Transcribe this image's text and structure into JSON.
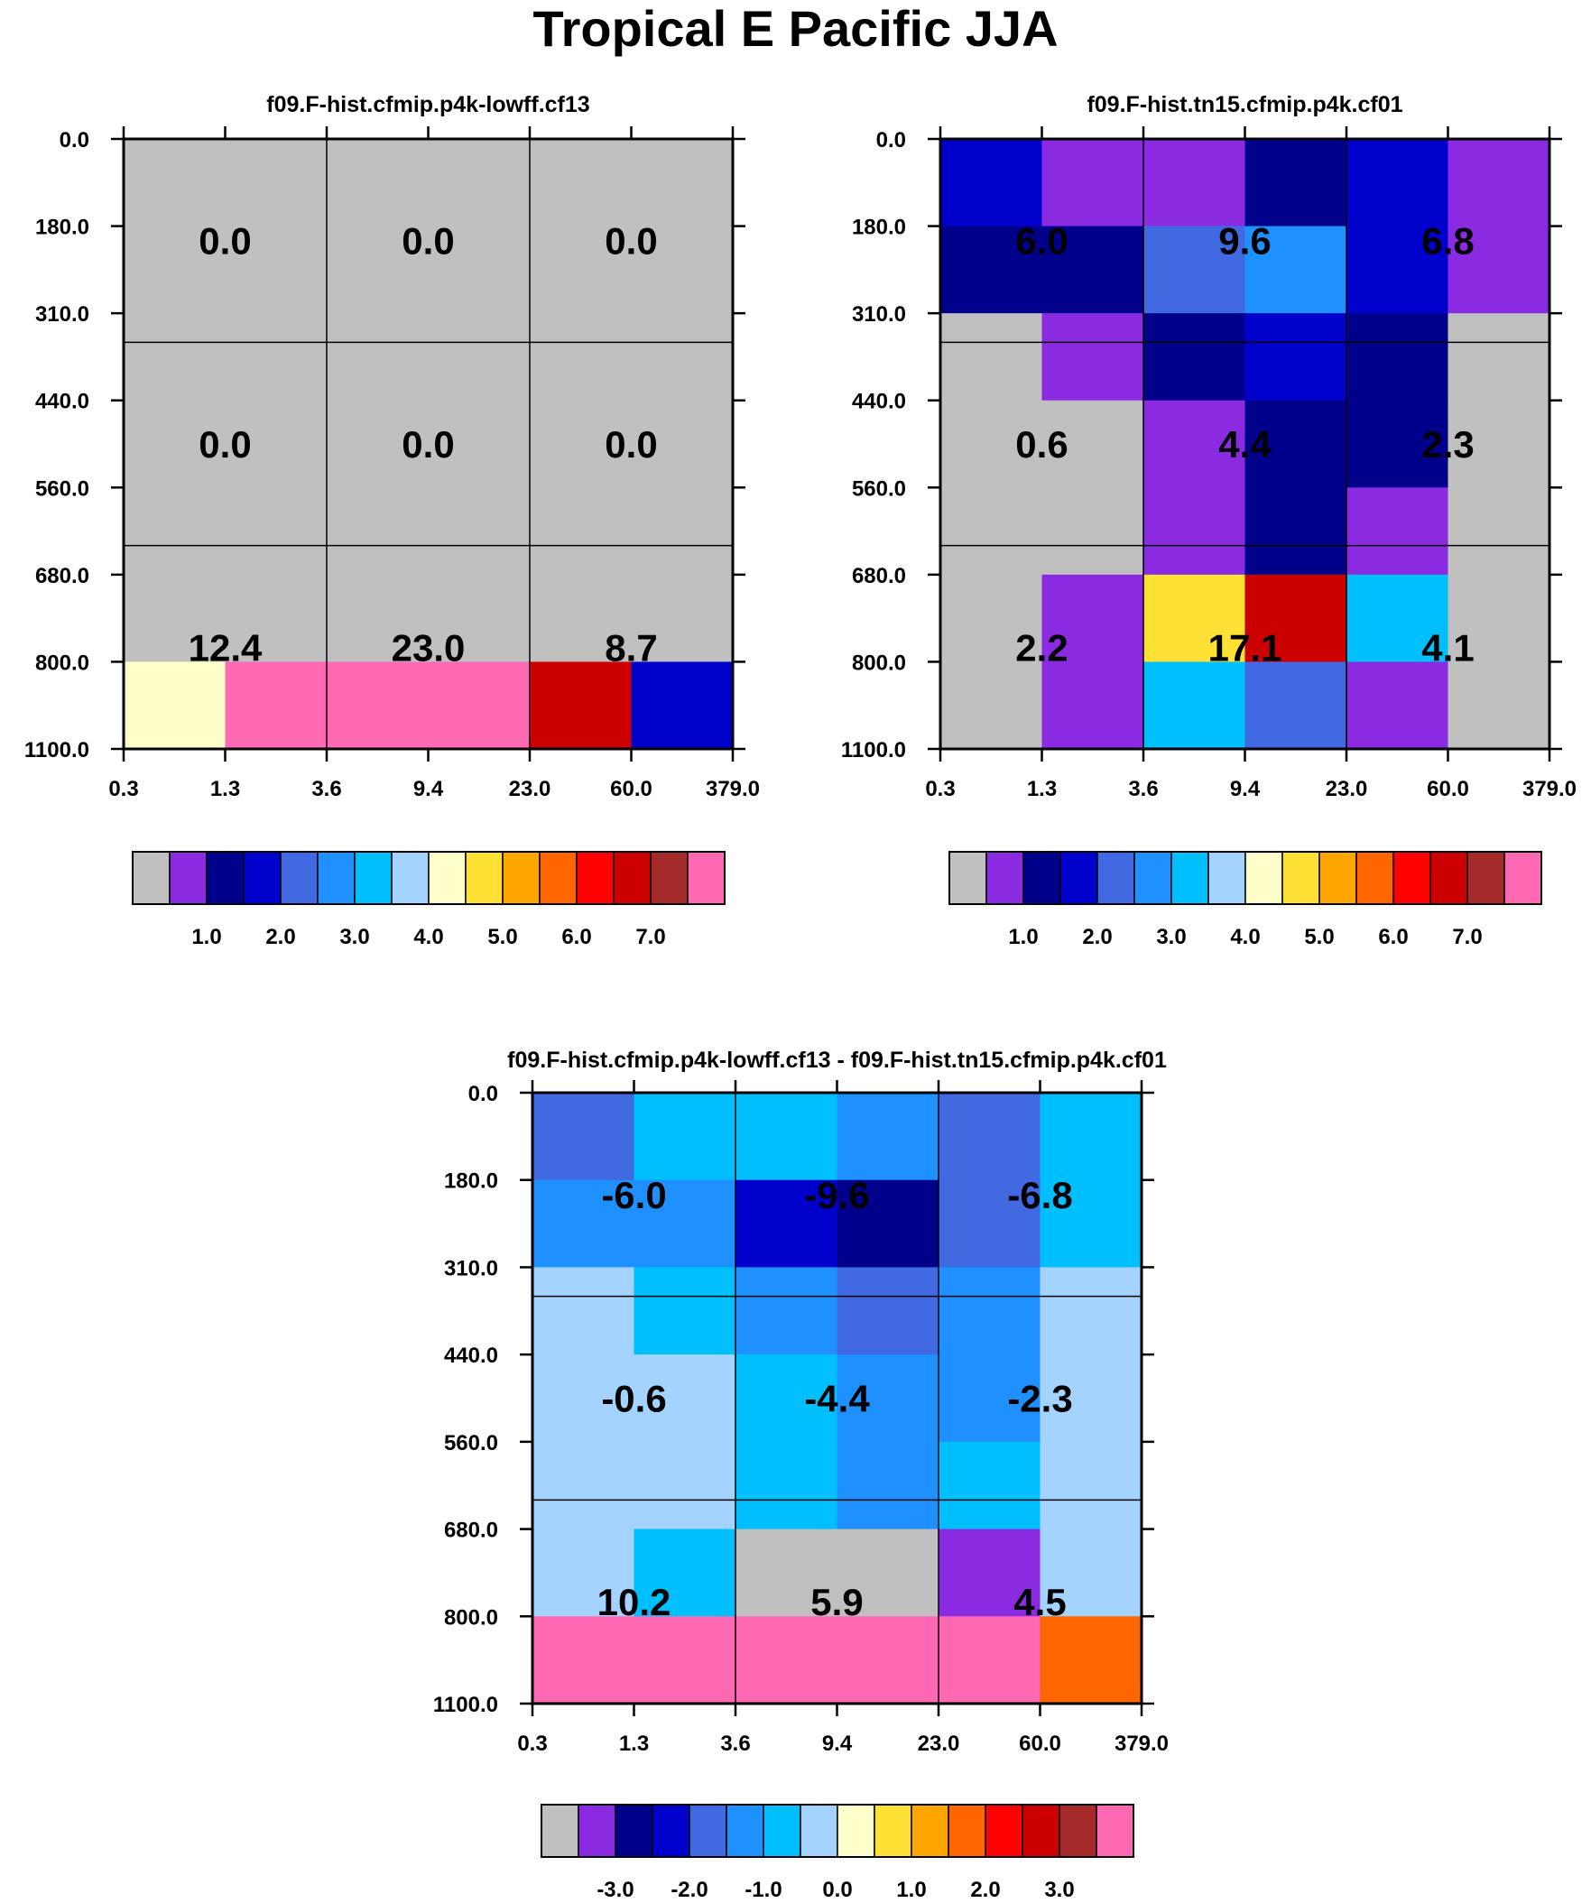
{
  "title": "Tropical E Pacific JJA",
  "y_tick_labels": [
    "0.0",
    "180.0",
    "310.0",
    "440.0",
    "560.0",
    "680.0",
    "800.0",
    "1100.0"
  ],
  "x_tick_labels": [
    "0.3",
    "1.3",
    "3.6",
    "9.4",
    "23.0",
    "60.0",
    "379.0"
  ],
  "colorbar_colors": [
    "#c0c0c0",
    "#8a2be2",
    "#00008b",
    "#0000cd",
    "#4169e1",
    "#1e90ff",
    "#00bfff",
    "#a4d3ff",
    "#ffffcc",
    "#ffe135",
    "#ffa500",
    "#ff6600",
    "#ff0000",
    "#cc0000",
    "#a52a2a",
    "#ff69b4"
  ],
  "chart_data": [
    {
      "type": "heatmap",
      "title": "f09.F-hist.cfmip.p4k-lowff.cf13",
      "cells": [
        [
          "#c0c0c0",
          "#c0c0c0",
          "#c0c0c0",
          "#c0c0c0",
          "#c0c0c0",
          "#c0c0c0"
        ],
        [
          "#c0c0c0",
          "#c0c0c0",
          "#c0c0c0",
          "#c0c0c0",
          "#c0c0c0",
          "#c0c0c0"
        ],
        [
          "#c0c0c0",
          "#c0c0c0",
          "#c0c0c0",
          "#c0c0c0",
          "#c0c0c0",
          "#c0c0c0"
        ],
        [
          "#c0c0c0",
          "#c0c0c0",
          "#c0c0c0",
          "#c0c0c0",
          "#c0c0c0",
          "#c0c0c0"
        ],
        [
          "#c0c0c0",
          "#c0c0c0",
          "#c0c0c0",
          "#c0c0c0",
          "#c0c0c0",
          "#c0c0c0"
        ],
        [
          "#c0c0c0",
          "#c0c0c0",
          "#c0c0c0",
          "#c0c0c0",
          "#c0c0c0",
          "#c0c0c0"
        ],
        [
          "#ffffcc",
          "#ff69b4",
          "#ff69b4",
          "#ff69b4",
          "#cc0000",
          "#0000cd"
        ]
      ],
      "values": [
        [
          "0.0",
          "0.0",
          "0.0"
        ],
        [
          "0.0",
          "0.0",
          "0.0"
        ],
        [
          "12.4",
          "23.0",
          "8.7"
        ]
      ],
      "colorbar_labels": [
        "1.0",
        "2.0",
        "3.0",
        "4.0",
        "5.0",
        "6.0",
        "7.0"
      ]
    },
    {
      "type": "heatmap",
      "title": "f09.F-hist.tn15.cfmip.p4k.cf01",
      "cells": [
        [
          "#0000cd",
          "#8a2be2",
          "#8a2be2",
          "#00008b",
          "#0000cd",
          "#8a2be2"
        ],
        [
          "#00008b",
          "#00008b",
          "#4169e1",
          "#1e90ff",
          "#0000cd",
          "#8a2be2"
        ],
        [
          "#c0c0c0",
          "#8a2be2",
          "#00008b",
          "#0000cd",
          "#00008b",
          "#c0c0c0"
        ],
        [
          "#c0c0c0",
          "#c0c0c0",
          "#8a2be2",
          "#00008b",
          "#00008b",
          "#c0c0c0"
        ],
        [
          "#c0c0c0",
          "#c0c0c0",
          "#8a2be2",
          "#00008b",
          "#8a2be2",
          "#c0c0c0"
        ],
        [
          "#c0c0c0",
          "#8a2be2",
          "#ffe135",
          "#cc0000",
          "#00bfff",
          "#c0c0c0"
        ],
        [
          "#c0c0c0",
          "#8a2be2",
          "#00bfff",
          "#4169e1",
          "#8a2be2",
          "#c0c0c0"
        ]
      ],
      "values": [
        [
          "6.0",
          "9.6",
          "6.8"
        ],
        [
          "0.6",
          "4.4",
          "2.3"
        ],
        [
          "2.2",
          "17.1",
          "4.1"
        ]
      ],
      "colorbar_labels": [
        "1.0",
        "2.0",
        "3.0",
        "4.0",
        "5.0",
        "6.0",
        "7.0"
      ]
    },
    {
      "type": "heatmap",
      "title": "f09.F-hist.cfmip.p4k-lowff.cf13 - f09.F-hist.tn15.cfmip.p4k.cf01",
      "cells": [
        [
          "#4169e1",
          "#00bfff",
          "#00bfff",
          "#1e90ff",
          "#4169e1",
          "#00bfff"
        ],
        [
          "#1e90ff",
          "#1e90ff",
          "#0000cd",
          "#00008b",
          "#4169e1",
          "#00bfff"
        ],
        [
          "#a4d3ff",
          "#00bfff",
          "#1e90ff",
          "#4169e1",
          "#1e90ff",
          "#a4d3ff"
        ],
        [
          "#a4d3ff",
          "#a4d3ff",
          "#00bfff",
          "#1e90ff",
          "#1e90ff",
          "#a4d3ff"
        ],
        [
          "#a4d3ff",
          "#a4d3ff",
          "#00bfff",
          "#1e90ff",
          "#00bfff",
          "#a4d3ff"
        ],
        [
          "#a4d3ff",
          "#00bfff",
          "#c0c0c0",
          "#c0c0c0",
          "#8a2be2",
          "#a4d3ff"
        ],
        [
          "#ff69b4",
          "#ff69b4",
          "#ff69b4",
          "#ff69b4",
          "#ff69b4",
          "#ff6600"
        ]
      ],
      "values": [
        [
          "-6.0",
          "-9.6",
          "-6.8"
        ],
        [
          "-0.6",
          "-4.4",
          "-2.3"
        ],
        [
          "10.2",
          "5.9",
          "4.5"
        ]
      ],
      "colorbar_labels": [
        "-3.0",
        "-2.0",
        "-1.0",
        "0.0",
        "1.0",
        "2.0",
        "3.0"
      ]
    }
  ]
}
